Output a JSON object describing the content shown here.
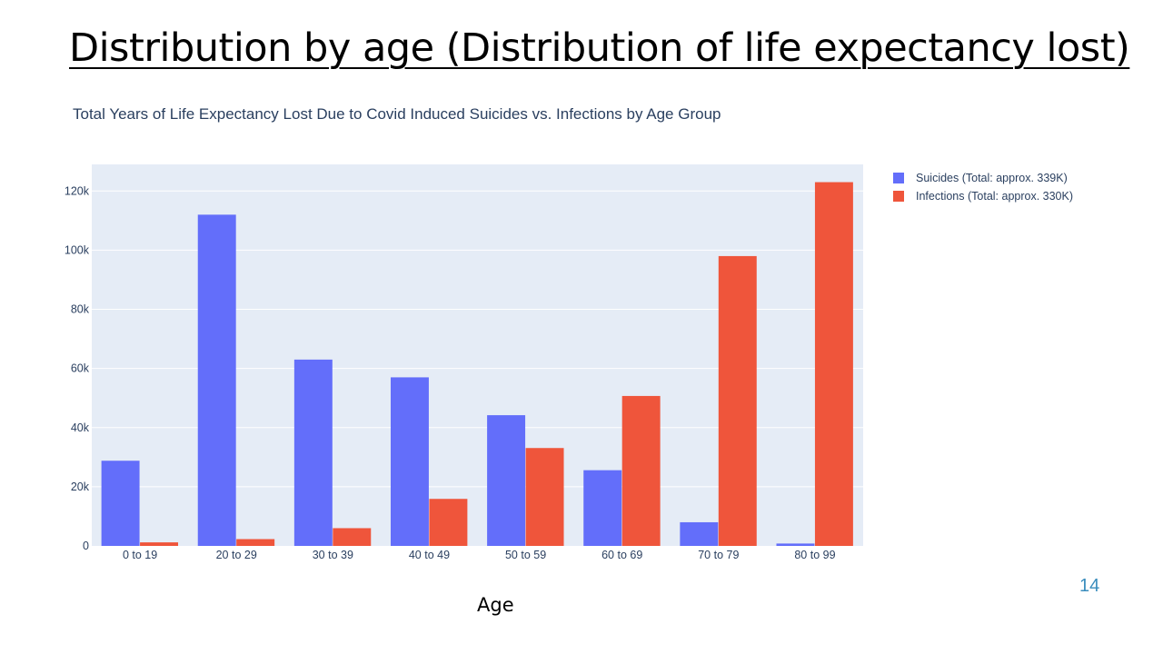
{
  "slide": {
    "title": "Distribution by age (Distribution of life expectancy lost)",
    "page_number": "14",
    "x_caption": "Age"
  },
  "chart_data": {
    "type": "bar",
    "title": "Total Years of Life Expectancy Lost Due to Covid Induced Suicides vs. Infections by Age Group",
    "xlabel": "",
    "ylabel": "",
    "categories": [
      "0 to 19",
      "20 to 29",
      "30 to 39",
      "40 to 49",
      "50 to 59",
      "60 to 69",
      "70 to 79",
      "80 to 99"
    ],
    "series": [
      {
        "name": "Suicides (Total: approx. 339K)",
        "color": "#636efa",
        "values": [
          28800,
          112000,
          63000,
          57000,
          44200,
          25600,
          8000,
          800
        ]
      },
      {
        "name": "Infections (Total: approx. 330K)",
        "color": "#ef553b",
        "values": [
          1200,
          2300,
          6000,
          15900,
          33100,
          50700,
          98000,
          123000
        ]
      }
    ],
    "ylim": [
      0,
      129000
    ],
    "yticks": [
      0,
      20000,
      40000,
      60000,
      80000,
      100000,
      120000
    ],
    "ytick_labels": [
      "0",
      "20k",
      "40k",
      "60k",
      "80k",
      "100k",
      "120k"
    ],
    "grid": true,
    "legend_position": "top-right",
    "plot_background": "#e5ecf6",
    "gridline_color": "#ffffff"
  }
}
